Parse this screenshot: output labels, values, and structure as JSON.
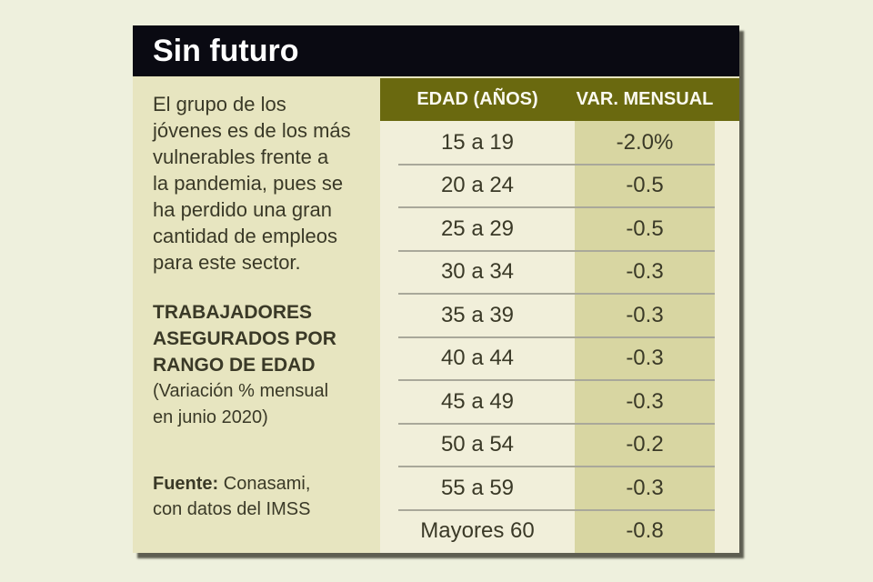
{
  "card": {
    "title": "Sin futuro",
    "intro_lines": [
      "El grupo de los",
      "jóvenes es de los más",
      "vulnerables frente a",
      "la pandemia, pues se",
      "ha perdido una gran",
      "cantidad de empleos",
      "para este sector."
    ],
    "subtitle_lines": [
      "TRABAJADORES",
      "ASEGURADOS POR",
      "RANGO DE EDAD"
    ],
    "note_lines": [
      "(Variación % mensual",
      "en junio 2020)"
    ],
    "source_label": "Fuente:",
    "source_rest": " Conasami,",
    "source_line2": "con datos del IMSS"
  },
  "table": {
    "headers": [
      "EDAD (AÑOS)",
      "VAR. MENSUAL"
    ],
    "rows": [
      {
        "age": "15 a 19",
        "var": "-2.0%"
      },
      {
        "age": "20 a 24",
        "var": "-0.5"
      },
      {
        "age": "25 a 29",
        "var": "-0.5"
      },
      {
        "age": "30 a 34",
        "var": "-0.3"
      },
      {
        "age": "35 a 39",
        "var": "-0.3"
      },
      {
        "age": "40 a 44",
        "var": "-0.3"
      },
      {
        "age": "45 a 49",
        "var": "-0.3"
      },
      {
        "age": "50 a 54",
        "var": "-0.2"
      },
      {
        "age": "55 a 59",
        "var": "-0.3"
      },
      {
        "age": "Mayores 60",
        "var": "-0.8"
      }
    ]
  },
  "chart_data": {
    "type": "table",
    "title": "Sin futuro",
    "subtitle": "TRABAJADORES ASEGURADOS POR RANGO DE EDAD (Variación % mensual en junio 2020)",
    "description": "El grupo de los jóvenes es de los más vulnerables frente a la pandemia, pues se ha perdido una gran cantidad de empleos para este sector.",
    "columns": [
      "EDAD (AÑOS)",
      "VAR. MENSUAL"
    ],
    "categories": [
      "15 a 19",
      "20 a 24",
      "25 a 29",
      "30 a 34",
      "35 a 39",
      "40 a 44",
      "45 a 49",
      "50 a 54",
      "55 a 59",
      "Mayores 60"
    ],
    "values": [
      -2.0,
      -0.5,
      -0.5,
      -0.3,
      -0.3,
      -0.3,
      -0.3,
      -0.2,
      -0.3,
      -0.8
    ],
    "value_labels": [
      "-2.0%",
      "-0.5",
      "-0.5",
      "-0.3",
      "-0.3",
      "-0.3",
      "-0.3",
      "-0.2",
      "-0.3",
      "-0.8"
    ],
    "unit": "%",
    "source": "Fuente: Conasami, con datos del IMSS"
  },
  "colors": {
    "page_bg": "#eef0dd",
    "card_bg": "#e7e5c0",
    "title_bar_bg": "#0a0a12",
    "title_text": "#ffffff",
    "header_bg": "#6a690f",
    "header_text": "#fbfaf0",
    "col_age_bg": "#f1efda",
    "col_var_bg": "#d8d6a2",
    "divider": "#a9a89a",
    "text_dark": "#3a3927"
  }
}
